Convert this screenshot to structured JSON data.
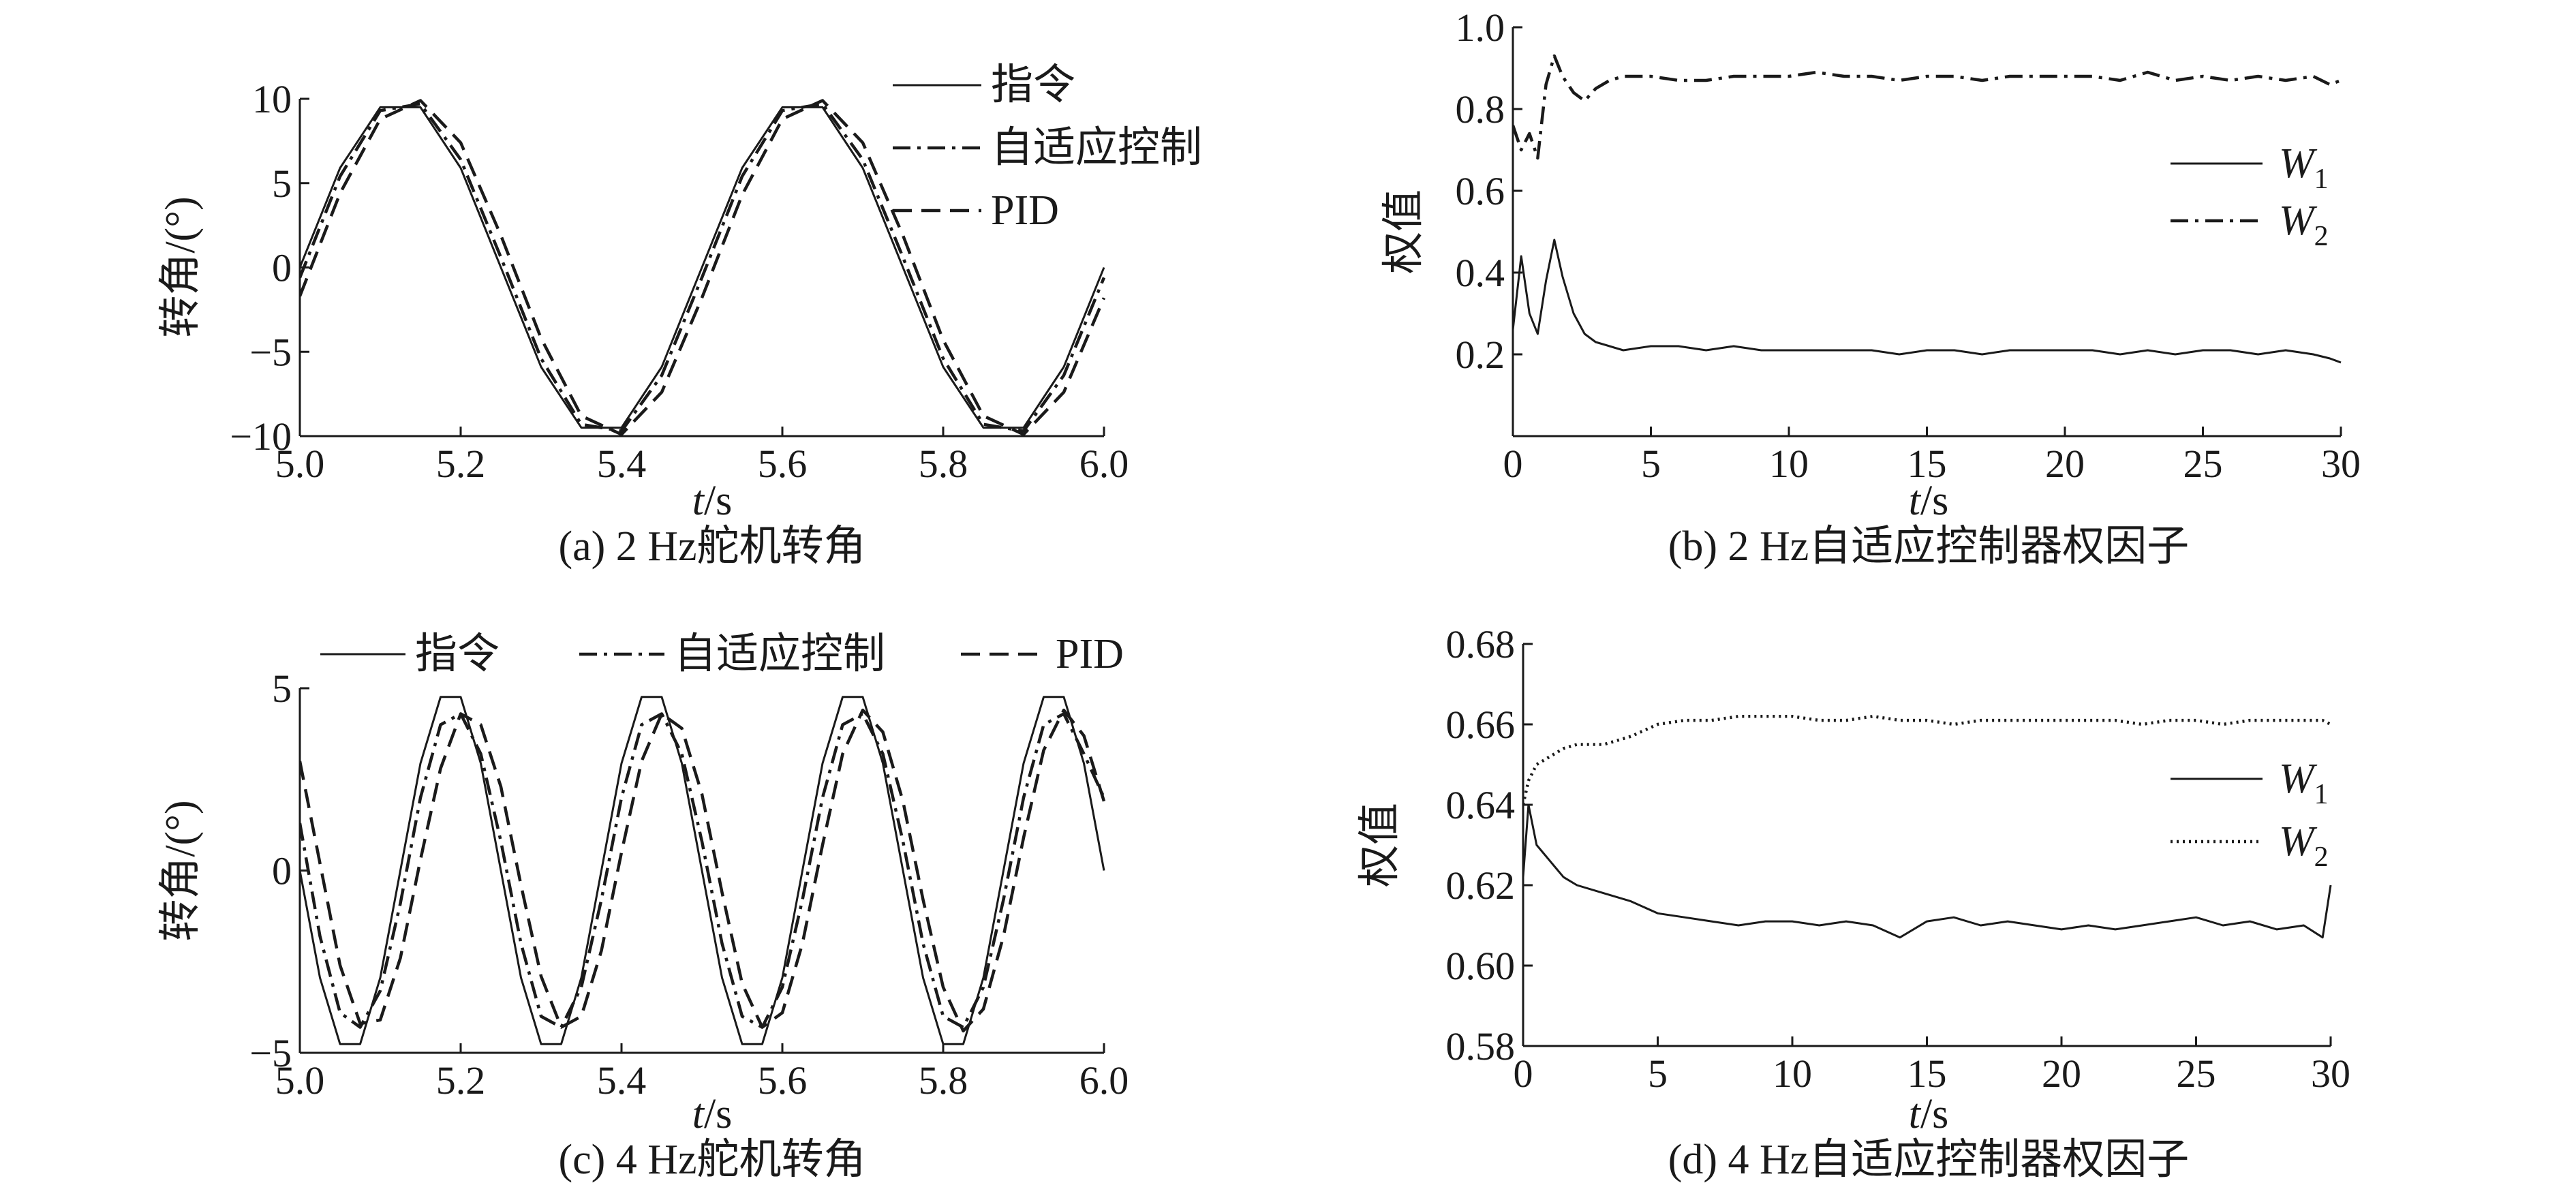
{
  "chart_data": [
    {
      "id": "a",
      "type": "line",
      "caption": "(a) 2 Hz舵机转角",
      "xlabel_italic": "t",
      "xlabel_unit": "/s",
      "ylabel": "转角/(°)",
      "xlim": [
        5.0,
        6.0
      ],
      "ylim": [
        -10,
        10
      ],
      "xticks": [
        5.0,
        5.2,
        5.4,
        5.6,
        5.8,
        6.0
      ],
      "xtick_labels": [
        "5.0",
        "5.2",
        "5.4",
        "5.6",
        "5.8",
        "6.0"
      ],
      "yticks": [
        -10,
        -5,
        0,
        5,
        10
      ],
      "ytick_labels": [
        "−10",
        "−5",
        "0",
        "5",
        "10"
      ],
      "legend_position": "top-right",
      "series": [
        {
          "name": "指令",
          "style": "solid",
          "color": "#1a1a1a",
          "x": [
            5.0,
            5.05,
            5.1,
            5.15,
            5.2,
            5.25,
            5.3,
            5.35,
            5.4,
            5.45,
            5.5,
            5.55,
            5.6,
            5.65,
            5.7,
            5.75,
            5.8,
            5.85,
            5.9,
            5.95,
            6.0
          ],
          "y": [
            0.0,
            5.9,
            9.5,
            9.5,
            5.9,
            0.0,
            -5.9,
            -9.5,
            -9.5,
            -5.9,
            0.0,
            5.9,
            9.5,
            9.5,
            5.9,
            0.0,
            -5.9,
            -9.5,
            -9.5,
            -5.9,
            0.0
          ]
        },
        {
          "name": "自适应控制",
          "style": "dashdot",
          "color": "#1a1a1a",
          "x": [
            5.0,
            5.05,
            5.1,
            5.15,
            5.2,
            5.25,
            5.3,
            5.35,
            5.4,
            5.45,
            5.5,
            5.55,
            5.6,
            5.65,
            5.7,
            5.75,
            5.8,
            5.85,
            5.9,
            5.95,
            6.0
          ],
          "y": [
            -0.6,
            5.4,
            9.3,
            9.7,
            6.4,
            0.6,
            -5.4,
            -9.3,
            -9.7,
            -6.4,
            -0.6,
            5.4,
            9.3,
            9.7,
            6.4,
            0.6,
            -5.4,
            -9.3,
            -9.7,
            -6.4,
            -0.6
          ]
        },
        {
          "name": "PID",
          "style": "dashed",
          "color": "#1a1a1a",
          "x": [
            5.0,
            5.05,
            5.1,
            5.15,
            5.2,
            5.25,
            5.3,
            5.35,
            5.4,
            5.45,
            5.5,
            5.55,
            5.6,
            5.65,
            5.7,
            5.75,
            5.8,
            5.85,
            5.9,
            5.95,
            6.0
          ],
          "y": [
            -1.7,
            4.4,
            8.8,
            9.9,
            7.4,
            1.9,
            -4.2,
            -8.8,
            -9.9,
            -7.4,
            -1.8,
            4.3,
            8.8,
            9.9,
            7.4,
            1.9,
            -4.3,
            -8.8,
            -9.9,
            -7.4,
            -1.8
          ]
        }
      ]
    },
    {
      "id": "b",
      "type": "line",
      "caption": "(b) 2 Hz自适应控制器权因子",
      "xlabel_italic": "t",
      "xlabel_unit": "/s",
      "ylabel": "权值",
      "xlim": [
        0,
        30
      ],
      "ylim": [
        0,
        1.0
      ],
      "xticks": [
        0,
        5,
        10,
        15,
        20,
        25,
        30
      ],
      "xtick_labels": [
        "0",
        "5",
        "10",
        "15",
        "20",
        "25",
        "30"
      ],
      "yticks": [
        0.2,
        0.4,
        0.6,
        0.8,
        1.0
      ],
      "ytick_labels": [
        "0.2",
        "0.4",
        "0.6",
        "0.8",
        "1.0"
      ],
      "legend_position": "right",
      "series": [
        {
          "name": "W",
          "subscript": "1",
          "style": "solid",
          "color": "#1a1a1a",
          "x": [
            0,
            0.3,
            0.6,
            0.9,
            1.2,
            1.5,
            1.8,
            2.2,
            2.6,
            3.0,
            3.5,
            4,
            5,
            6,
            7,
            8,
            9,
            10,
            11,
            12,
            13,
            14,
            15,
            16,
            17,
            18,
            19,
            20,
            21,
            22,
            23,
            24,
            25,
            26,
            27,
            28,
            29,
            29.6,
            30
          ],
          "y": [
            0.26,
            0.44,
            0.3,
            0.25,
            0.38,
            0.48,
            0.39,
            0.3,
            0.25,
            0.23,
            0.22,
            0.21,
            0.22,
            0.22,
            0.21,
            0.22,
            0.21,
            0.21,
            0.21,
            0.21,
            0.21,
            0.2,
            0.21,
            0.21,
            0.2,
            0.21,
            0.21,
            0.21,
            0.21,
            0.2,
            0.21,
            0.2,
            0.21,
            0.21,
            0.2,
            0.21,
            0.2,
            0.19,
            0.18
          ]
        },
        {
          "name": "W",
          "subscript": "2",
          "style": "dashdot",
          "color": "#1a1a1a",
          "x": [
            0,
            0.3,
            0.6,
            0.9,
            1.2,
            1.5,
            1.8,
            2.2,
            2.6,
            3.0,
            3.5,
            4,
            5,
            6,
            7,
            8,
            9,
            10,
            11,
            12,
            13,
            14,
            15,
            16,
            17,
            18,
            19,
            20,
            21,
            22,
            23,
            24,
            25,
            26,
            27,
            28,
            29,
            29.6,
            30
          ],
          "y": [
            0.76,
            0.7,
            0.74,
            0.68,
            0.86,
            0.93,
            0.88,
            0.84,
            0.82,
            0.85,
            0.87,
            0.88,
            0.88,
            0.87,
            0.87,
            0.88,
            0.88,
            0.88,
            0.89,
            0.88,
            0.88,
            0.87,
            0.88,
            0.88,
            0.87,
            0.88,
            0.88,
            0.88,
            0.88,
            0.87,
            0.89,
            0.87,
            0.88,
            0.87,
            0.88,
            0.87,
            0.88,
            0.86,
            0.87
          ]
        }
      ]
    },
    {
      "id": "c",
      "type": "line",
      "caption": "(c) 4 Hz舵机转角",
      "xlabel_italic": "t",
      "xlabel_unit": "/s",
      "ylabel": "转角/(°)",
      "xlim": [
        5.0,
        6.0
      ],
      "ylim": [
        -5,
        5
      ],
      "xticks": [
        5.0,
        5.2,
        5.4,
        5.6,
        5.8,
        6.0
      ],
      "xtick_labels": [
        "5.0",
        "5.2",
        "5.4",
        "5.6",
        "5.8",
        "6.0"
      ],
      "yticks": [
        -5,
        0,
        5
      ],
      "ytick_labels": [
        "−5",
        "0",
        "5"
      ],
      "legend_position": "top",
      "series": [
        {
          "name": "指令",
          "style": "solid",
          "color": "#1a1a1a",
          "x": [
            5.0,
            5.025,
            5.05,
            5.075,
            5.1,
            5.125,
            5.15,
            5.175,
            5.2,
            5.225,
            5.25,
            5.275,
            5.3,
            5.325,
            5.35,
            5.375,
            5.4,
            5.425,
            5.45,
            5.475,
            5.5,
            5.525,
            5.55,
            5.575,
            5.6,
            5.625,
            5.65,
            5.675,
            5.7,
            5.725,
            5.75,
            5.775,
            5.8,
            5.825,
            5.85,
            5.875,
            5.9,
            5.925,
            5.95,
            5.975,
            6.0
          ],
          "y": [
            0.0,
            -2.94,
            -4.76,
            -4.76,
            -2.94,
            0.0,
            2.94,
            4.76,
            4.76,
            2.94,
            0.0,
            -2.94,
            -4.76,
            -4.76,
            -2.94,
            0.0,
            2.94,
            4.76,
            4.76,
            2.94,
            0.0,
            -2.94,
            -4.76,
            -4.76,
            -2.94,
            0.0,
            2.94,
            4.76,
            4.76,
            2.94,
            0.0,
            -2.94,
            -4.76,
            -4.76,
            -2.94,
            0.0,
            2.94,
            4.76,
            4.76,
            2.94,
            0.0
          ]
        },
        {
          "name": "自适应控制",
          "style": "dashdot",
          "color": "#1a1a1a",
          "x": [
            5.0,
            5.025,
            5.05,
            5.075,
            5.1,
            5.125,
            5.15,
            5.175,
            5.2,
            5.225,
            5.25,
            5.275,
            5.3,
            5.325,
            5.35,
            5.375,
            5.4,
            5.425,
            5.45,
            5.475,
            5.5,
            5.525,
            5.55,
            5.575,
            5.6,
            5.625,
            5.65,
            5.675,
            5.7,
            5.725,
            5.75,
            5.775,
            5.8,
            5.825,
            5.85,
            5.875,
            5.9,
            5.925,
            5.95,
            5.975,
            6.0
          ],
          "y": [
            1.3,
            -1.8,
            -3.9,
            -4.3,
            -3.3,
            -0.9,
            2.0,
            4.0,
            4.3,
            3.2,
            0.8,
            -2.0,
            -4.0,
            -4.3,
            -3.2,
            -0.8,
            2.0,
            4.0,
            4.3,
            3.2,
            0.8,
            -2.0,
            -4.0,
            -4.3,
            -3.2,
            -0.8,
            2.0,
            4.0,
            4.3,
            3.2,
            0.8,
            -2.0,
            -4.0,
            -4.3,
            -3.2,
            -0.8,
            2.0,
            4.0,
            4.3,
            3.2,
            2.0
          ]
        },
        {
          "name": "PID",
          "style": "dashed",
          "color": "#1a1a1a",
          "x": [
            5.0,
            5.025,
            5.05,
            5.075,
            5.1,
            5.125,
            5.15,
            5.175,
            5.2,
            5.225,
            5.25,
            5.275,
            5.3,
            5.325,
            5.35,
            5.375,
            5.4,
            5.425,
            5.45,
            5.475,
            5.5,
            5.525,
            5.55,
            5.575,
            5.6,
            5.625,
            5.65,
            5.675,
            5.7,
            5.725,
            5.75,
            5.775,
            5.8,
            5.825,
            5.85,
            5.875,
            5.9,
            5.925,
            5.95,
            5.975,
            6.0
          ],
          "y": [
            3.0,
            0.2,
            -2.6,
            -4.2,
            -4.1,
            -2.4,
            0.3,
            2.8,
            4.3,
            4.0,
            2.3,
            -0.4,
            -2.9,
            -4.3,
            -4.0,
            -2.2,
            0.5,
            3.0,
            4.3,
            3.9,
            2.1,
            -0.6,
            -3.1,
            -4.3,
            -3.9,
            -2.0,
            0.7,
            3.2,
            4.4,
            3.8,
            1.9,
            -0.8,
            -3.2,
            -4.4,
            -3.8,
            -1.8,
            0.9,
            3.3,
            4.4,
            3.7,
            1.9
          ]
        }
      ]
    },
    {
      "id": "d",
      "type": "line",
      "caption": "(d) 4 Hz自适应控制器权因子",
      "xlabel_italic": "t",
      "xlabel_unit": "/s",
      "ylabel": "权值",
      "xlim": [
        0,
        30
      ],
      "ylim": [
        0.58,
        0.68
      ],
      "xticks": [
        0,
        5,
        10,
        15,
        20,
        25,
        30
      ],
      "xtick_labels": [
        "0",
        "5",
        "10",
        "15",
        "20",
        "25",
        "30"
      ],
      "yticks": [
        0.58,
        0.6,
        0.62,
        0.64,
        0.66,
        0.68
      ],
      "ytick_labels": [
        "0.58",
        "0.60",
        "0.62",
        "0.64",
        "0.66",
        "0.68"
      ],
      "legend_position": "right",
      "series": [
        {
          "name": "W",
          "subscript": "1",
          "style": "solid",
          "color": "#1a1a1a",
          "x": [
            0,
            0.2,
            0.5,
            1,
            1.5,
            2,
            3,
            4,
            5,
            6,
            7,
            8,
            9,
            10,
            11,
            12,
            13,
            14,
            15,
            16,
            17,
            18,
            19,
            20,
            21,
            22,
            23,
            24,
            25,
            26,
            27,
            28,
            29,
            29.7,
            30
          ],
          "y": [
            0.622,
            0.64,
            0.63,
            0.626,
            0.622,
            0.62,
            0.618,
            0.616,
            0.613,
            0.612,
            0.611,
            0.61,
            0.611,
            0.611,
            0.61,
            0.611,
            0.61,
            0.607,
            0.611,
            0.612,
            0.61,
            0.611,
            0.61,
            0.609,
            0.61,
            0.609,
            0.61,
            0.611,
            0.612,
            0.61,
            0.611,
            0.609,
            0.61,
            0.607,
            0.62
          ]
        },
        {
          "name": "W",
          "subscript": "2",
          "style": "dotted",
          "color": "#1a1a1a",
          "x": [
            0,
            0.2,
            0.5,
            1,
            1.5,
            2,
            3,
            4,
            5,
            6,
            7,
            8,
            9,
            10,
            11,
            12,
            13,
            14,
            15,
            16,
            17,
            18,
            19,
            20,
            21,
            22,
            23,
            24,
            25,
            26,
            27,
            28,
            29,
            29.7,
            30
          ],
          "y": [
            0.64,
            0.646,
            0.65,
            0.652,
            0.654,
            0.655,
            0.655,
            0.657,
            0.66,
            0.661,
            0.661,
            0.662,
            0.662,
            0.662,
            0.661,
            0.661,
            0.662,
            0.661,
            0.661,
            0.66,
            0.661,
            0.661,
            0.661,
            0.661,
            0.661,
            0.661,
            0.66,
            0.661,
            0.661,
            0.66,
            0.661,
            0.661,
            0.661,
            0.661,
            0.66
          ]
        }
      ]
    }
  ]
}
